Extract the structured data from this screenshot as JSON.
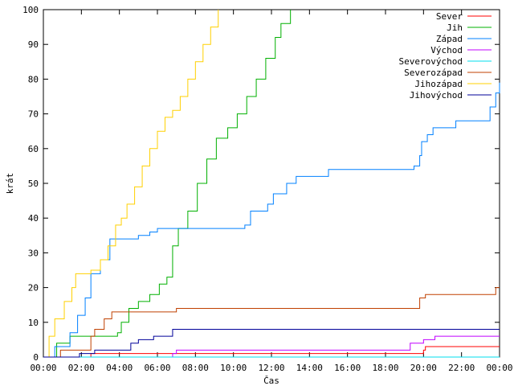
{
  "chart_data": {
    "type": "line",
    "xlabel": "Čas",
    "ylabel": "krát",
    "x_unit": "time-of-day (hours)",
    "xlim": [
      0,
      24
    ],
    "ylim": [
      0,
      100
    ],
    "xticks": [
      "00:00",
      "02:00",
      "04:00",
      "06:00",
      "08:00",
      "10:00",
      "12:00",
      "14:00",
      "16:00",
      "18:00",
      "20:00",
      "22:00",
      "00:00"
    ],
    "yticks": [
      "0",
      "10",
      "20",
      "30",
      "40",
      "50",
      "60",
      "70",
      "80",
      "90",
      "100"
    ],
    "grid": false,
    "legend_position": "top-right",
    "series": [
      {
        "name": "Sever",
        "color": "#ff0000",
        "points": [
          [
            2,
            0
          ],
          [
            2.5,
            1
          ],
          [
            19.9,
            1
          ],
          [
            20,
            2
          ],
          [
            20.1,
            3
          ],
          [
            24,
            3
          ]
        ]
      },
      {
        "name": "Jih",
        "color": "#00b000",
        "points": [
          [
            0,
            0
          ],
          [
            0.7,
            4
          ],
          [
            1.4,
            6
          ],
          [
            3.9,
            7
          ],
          [
            4.1,
            10
          ],
          [
            4.5,
            14
          ],
          [
            5,
            16
          ],
          [
            5.6,
            18
          ],
          [
            6.1,
            21
          ],
          [
            6.5,
            23
          ],
          [
            6.8,
            32
          ],
          [
            7.1,
            37
          ],
          [
            7.6,
            42
          ],
          [
            8.1,
            50
          ],
          [
            8.6,
            57
          ],
          [
            9.1,
            63
          ],
          [
            9.7,
            66
          ],
          [
            10.2,
            70
          ],
          [
            10.7,
            75
          ],
          [
            11.2,
            80
          ],
          [
            11.7,
            86
          ],
          [
            12.2,
            92
          ],
          [
            12.5,
            96
          ],
          [
            13,
            100
          ]
        ]
      },
      {
        "name": "Západ",
        "color": "#0080ff",
        "points": [
          [
            0,
            0
          ],
          [
            0.6,
            3
          ],
          [
            1.4,
            7
          ],
          [
            1.8,
            12
          ],
          [
            2.2,
            17
          ],
          [
            2.5,
            24
          ],
          [
            3,
            28
          ],
          [
            3.5,
            34
          ],
          [
            5,
            35
          ],
          [
            5.6,
            36
          ],
          [
            6,
            37
          ],
          [
            10.6,
            38
          ],
          [
            10.9,
            42
          ],
          [
            11.8,
            44
          ],
          [
            12.1,
            47
          ],
          [
            12.8,
            50
          ],
          [
            13.3,
            52
          ],
          [
            15,
            54
          ],
          [
            19.5,
            55
          ],
          [
            19.8,
            58
          ],
          [
            19.9,
            62
          ],
          [
            20.2,
            64
          ],
          [
            20.5,
            66
          ],
          [
            21.7,
            68
          ],
          [
            23.5,
            72
          ],
          [
            23.8,
            76
          ],
          [
            24,
            79
          ]
        ]
      },
      {
        "name": "Východ",
        "color": "#c000ff",
        "points": [
          [
            0,
            0
          ],
          [
            6.8,
            1
          ],
          [
            7,
            2
          ],
          [
            19,
            2
          ],
          [
            19.3,
            4
          ],
          [
            20,
            5
          ],
          [
            20.6,
            6
          ],
          [
            24,
            6
          ]
        ]
      },
      {
        "name": "Severovýchod",
        "color": "#00ddee",
        "points": [
          [
            0,
            0
          ],
          [
            0.3,
            0
          ],
          [
            24,
            0
          ]
        ]
      },
      {
        "name": "Severozápad",
        "color": "#c04000",
        "points": [
          [
            0,
            0
          ],
          [
            0.9,
            2
          ],
          [
            2.5,
            6
          ],
          [
            2.7,
            8
          ],
          [
            3.2,
            11
          ],
          [
            3.6,
            13
          ],
          [
            4,
            13
          ],
          [
            5,
            13
          ],
          [
            7,
            14
          ],
          [
            19.5,
            14
          ],
          [
            19.8,
            17
          ],
          [
            20.1,
            18
          ],
          [
            23.5,
            18
          ],
          [
            23.8,
            20
          ],
          [
            24,
            20
          ]
        ]
      },
      {
        "name": "Jihozápad",
        "color": "#ffd000",
        "points": [
          [
            0,
            0
          ],
          [
            0.3,
            6
          ],
          [
            0.6,
            11
          ],
          [
            1.1,
            16
          ],
          [
            1.5,
            20
          ],
          [
            1.7,
            24
          ],
          [
            2.5,
            25
          ],
          [
            3,
            28
          ],
          [
            3.4,
            32
          ],
          [
            3.8,
            38
          ],
          [
            4.1,
            40
          ],
          [
            4.4,
            44
          ],
          [
            4.8,
            49
          ],
          [
            5.2,
            55
          ],
          [
            5.6,
            60
          ],
          [
            6,
            65
          ],
          [
            6.4,
            69
          ],
          [
            6.8,
            71
          ],
          [
            7.2,
            75
          ],
          [
            7.6,
            80
          ],
          [
            8,
            85
          ],
          [
            8.4,
            90
          ],
          [
            8.8,
            95
          ],
          [
            9.2,
            100
          ]
        ]
      },
      {
        "name": "Jihovýchod",
        "color": "#000099",
        "points": [
          [
            0,
            0
          ],
          [
            1.9,
            1
          ],
          [
            2.7,
            2
          ],
          [
            4.6,
            4
          ],
          [
            5,
            5
          ],
          [
            5.8,
            6
          ],
          [
            6.8,
            8
          ],
          [
            24,
            8
          ]
        ]
      }
    ]
  }
}
